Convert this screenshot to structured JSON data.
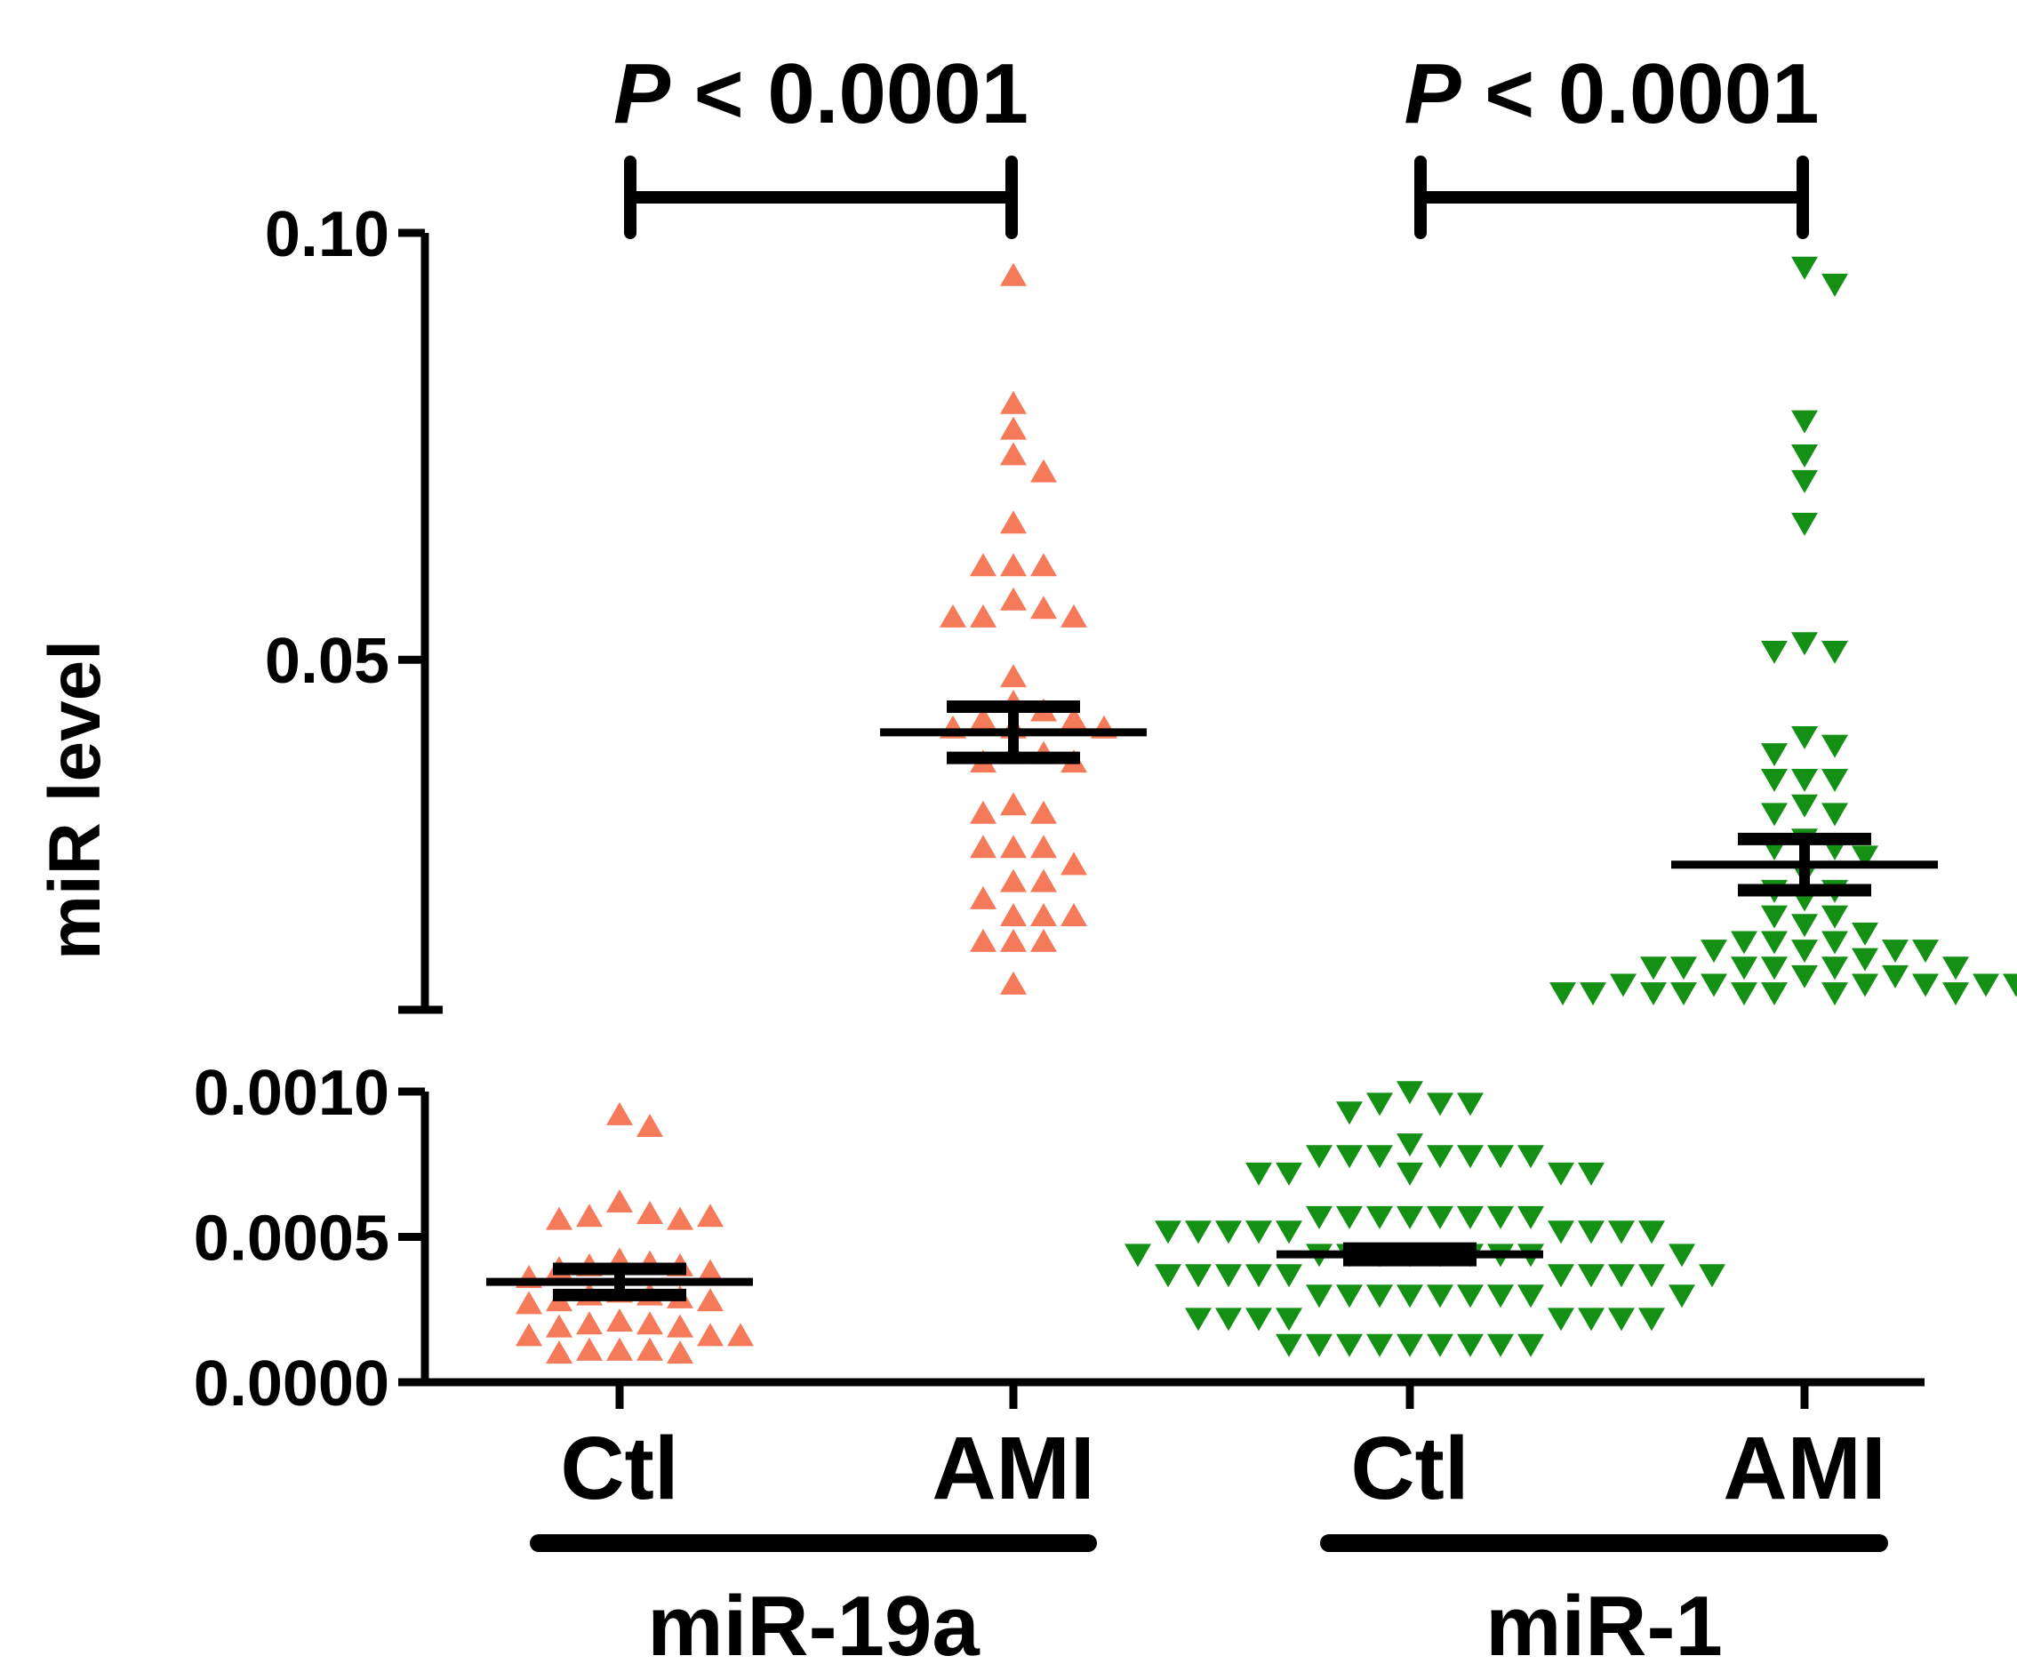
{
  "chart_data": {
    "type": "scatter",
    "title": "",
    "ylabel": "miR level",
    "y_axis_break": true,
    "lower_segment": {
      "ylim": [
        0.0,
        0.001
      ],
      "ticks": [
        0.0,
        0.0005,
        0.001
      ],
      "tick_labels": [
        "0.0000",
        "0.0005",
        "0.0010"
      ]
    },
    "upper_segment": {
      "ylim": [
        0.009,
        0.1
      ],
      "ticks": [
        0.05,
        0.1
      ],
      "tick_labels": [
        "0.05",
        "0.10"
      ]
    },
    "categories": [
      "Ctl",
      "AMI",
      "Ctl",
      "AMI"
    ],
    "groups": [
      {
        "label": "miR-19a",
        "categories": [
          0,
          1
        ]
      },
      {
        "label": "miR-1",
        "categories": [
          2,
          3
        ]
      }
    ],
    "comparisons": [
      {
        "from": 0,
        "to": 1,
        "label_italic": "P",
        "label_rest": " < 0.0001"
      },
      {
        "from": 2,
        "to": 3,
        "label_italic": "P",
        "label_rest": " < 0.0001"
      }
    ],
    "series": [
      {
        "category": 0,
        "marker": "triangle-up",
        "color": "#f47a5a",
        "mean": 0.000345,
        "sem": 4.5e-05,
        "values": [
          0.00092,
          0.00088,
          0.00062,
          0.00058,
          0.00057,
          0.00056,
          0.00056,
          0.00057,
          0.00042,
          0.00041,
          0.0004,
          0.0004,
          0.00039,
          0.00038,
          0.00036,
          0.00031,
          0.0003,
          0.0003,
          0.00029,
          0.00028,
          0.00028,
          0.00027,
          0.00021,
          0.0002,
          0.0002,
          0.00019,
          0.00019,
          0.00016,
          0.00016,
          0.00016,
          0.00011,
          0.00011,
          0.00011,
          0.0001,
          0.0001
        ]
      },
      {
        "category": 1,
        "marker": "triangle-up",
        "color": "#f47a5a",
        "values": [
          0.095,
          0.08,
          0.077,
          0.074,
          0.072,
          0.066,
          0.061,
          0.061,
          0.061,
          0.057,
          0.056,
          0.055,
          0.055,
          0.055,
          0.048,
          0.045,
          0.044,
          0.043,
          0.043,
          0.042,
          0.042,
          0.042,
          0.039,
          0.039,
          0.038,
          0.038,
          0.033,
          0.032,
          0.032,
          0.028,
          0.028,
          0.028,
          0.026,
          0.024,
          0.024,
          0.022,
          0.02,
          0.02,
          0.02,
          0.017,
          0.017,
          0.017,
          0.012
        ],
        "mean": 0.0415,
        "sem": 0.003
      },
      {
        "category": 2,
        "marker": "triangle-down",
        "color": "#149114",
        "mean": 0.00044,
        "sem": 2e-05,
        "values": [
          0.001,
          0.00096,
          0.00096,
          0.00096,
          0.00093,
          0.00082,
          0.00078,
          0.00078,
          0.00078,
          0.00078,
          0.00078,
          0.00078,
          0.00078,
          0.00072,
          0.00072,
          0.00072,
          0.00072,
          0.00072,
          0.00057,
          0.00057,
          0.00057,
          0.00057,
          0.00057,
          0.00057,
          0.00057,
          0.00057,
          0.00052,
          0.00052,
          0.00052,
          0.00052,
          0.00052,
          0.00052,
          0.00052,
          0.00052,
          0.00052,
          0.00044,
          0.00044,
          0.00044,
          0.00044,
          0.00044,
          0.00044,
          0.00044,
          0.00044,
          0.00044,
          0.00044,
          0.00037,
          0.00037,
          0.00037,
          0.00037,
          0.00037,
          0.00037,
          0.00037,
          0.00037,
          0.00037,
          0.00037,
          0.0003,
          0.0003,
          0.0003,
          0.0003,
          0.0003,
          0.0003,
          0.0003,
          0.0003,
          0.0003,
          0.00022,
          0.00022,
          0.00022,
          0.00022,
          0.00022,
          0.00022,
          0.00022,
          0.00022,
          0.00013,
          0.00013,
          0.00013,
          0.00013,
          0.00013,
          0.00013,
          0.00013,
          0.00013,
          0.00013
        ]
      },
      {
        "category": 3,
        "marker": "triangle-down",
        "color": "#149114",
        "values": [
          0.096,
          0.094,
          0.078,
          0.074,
          0.071,
          0.066,
          0.052,
          0.051,
          0.051,
          0.041,
          0.04,
          0.039,
          0.036,
          0.036,
          0.036,
          0.033,
          0.032,
          0.032,
          0.029,
          0.028,
          0.028,
          0.027,
          0.025,
          0.023,
          0.023,
          0.022,
          0.02,
          0.02,
          0.019,
          0.018,
          0.017,
          0.017,
          0.017,
          0.016,
          0.016,
          0.016,
          0.016,
          0.015,
          0.014,
          0.014,
          0.014,
          0.014,
          0.014,
          0.014,
          0.013,
          0.013,
          0.012,
          0.012,
          0.012,
          0.012,
          0.012,
          0.012,
          0.011,
          0.011,
          0.011,
          0.011,
          0.011,
          0.011,
          0.011,
          0.011,
          0.011
        ],
        "mean": 0.026,
        "sem": 0.003
      }
    ],
    "grid": false,
    "legend": "none"
  }
}
